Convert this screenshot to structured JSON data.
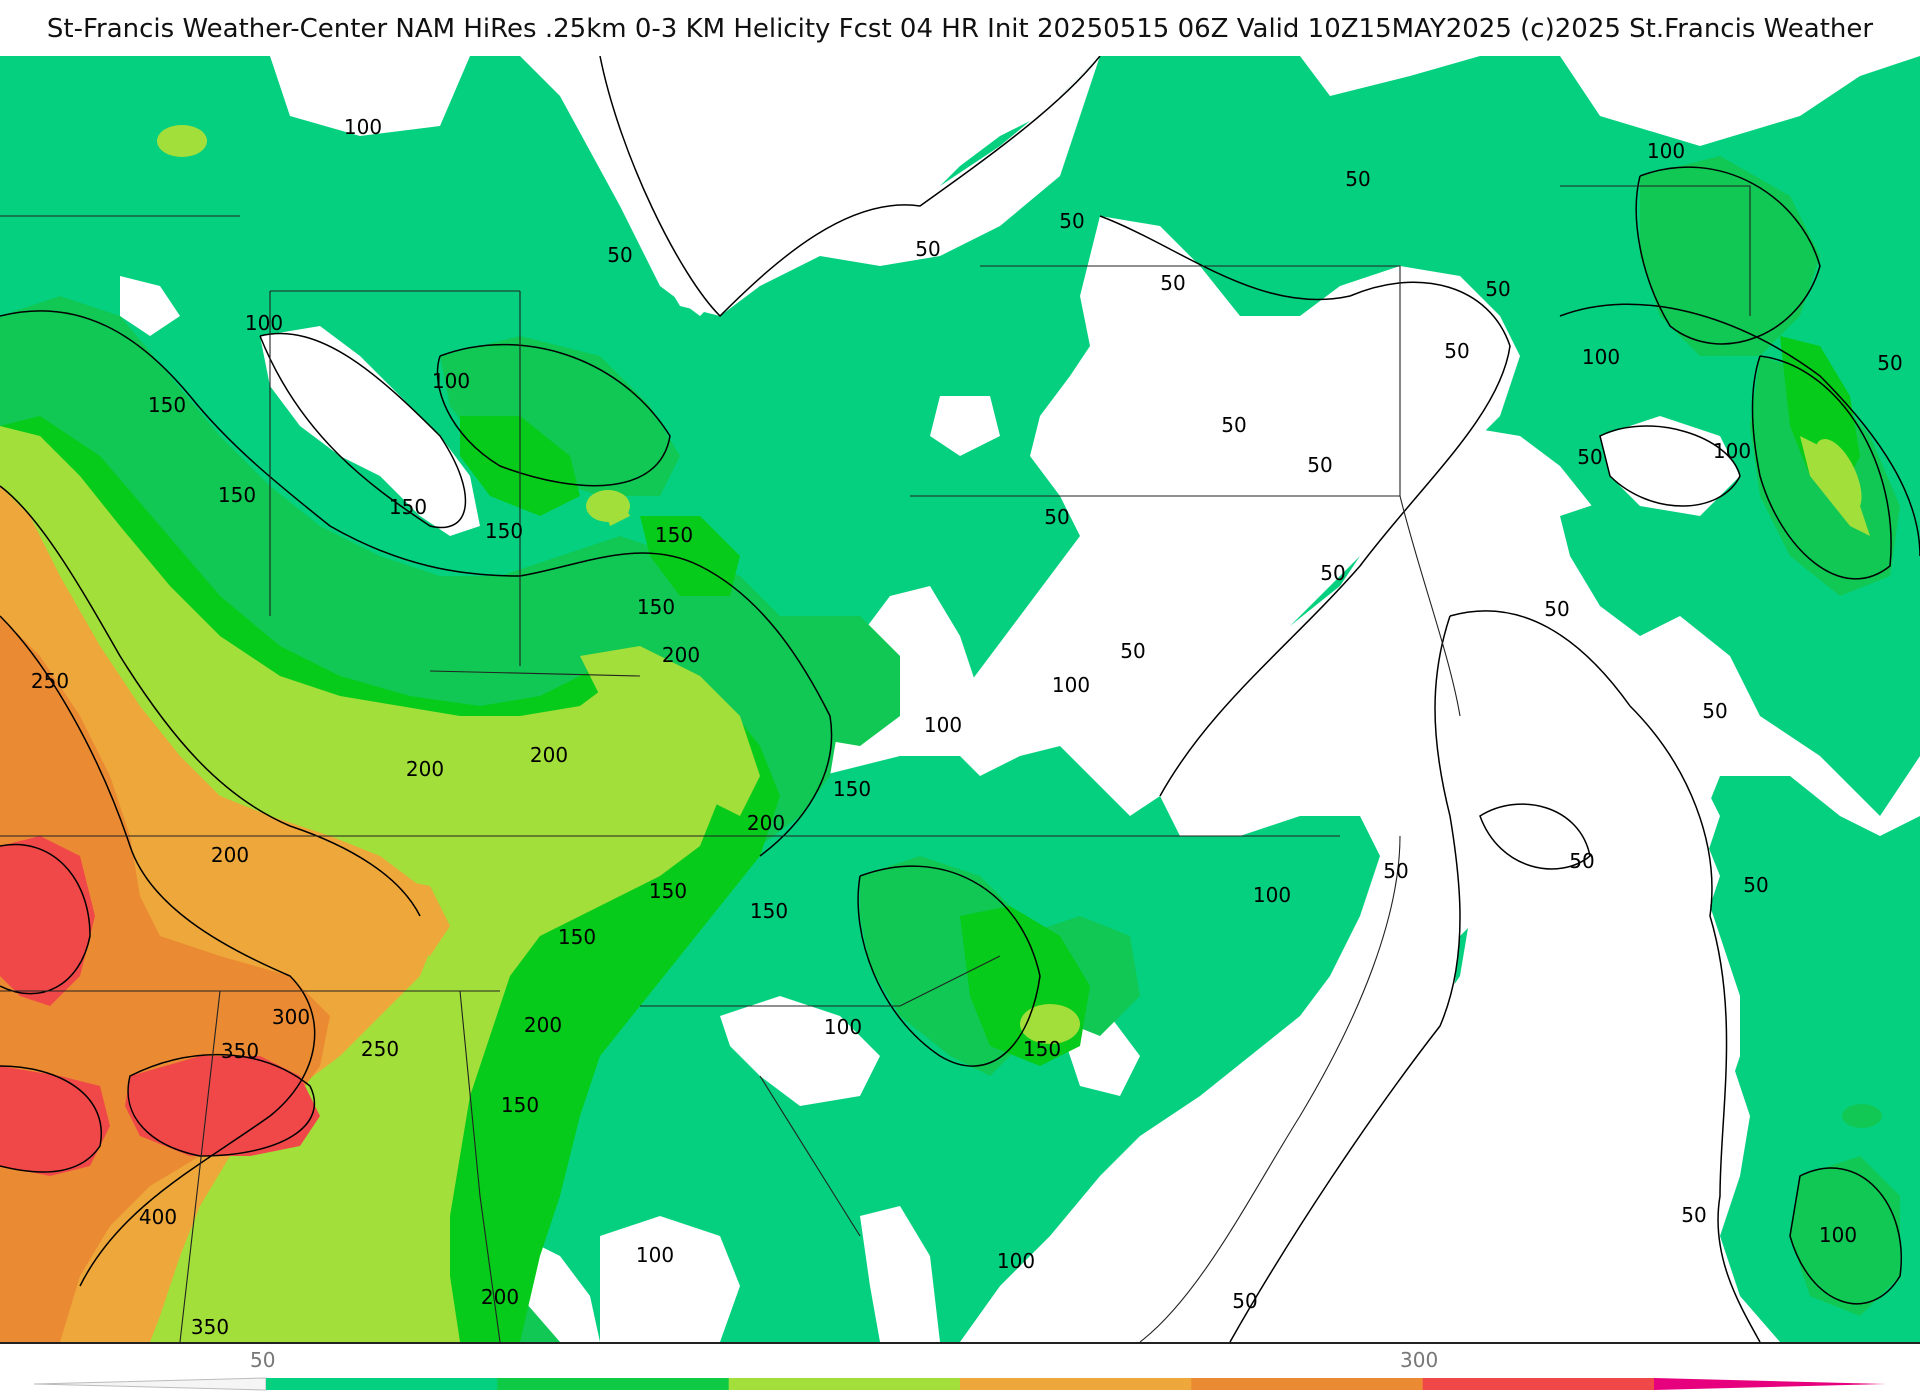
{
  "header": {
    "title": "St-Francis Weather-Center NAM HiRes .25km 0-3 KM Helicity Fcst 04 HR Init 20250515 06Z  Valid 10Z15MAY2025    (c)2025 St.Francis Weather"
  },
  "colors": {
    "c50": "#05d07f",
    "c100": "#10c853",
    "c150": "#06cb1a",
    "c200": "#a2df3a",
    "c250": "#eea73a",
    "c300": "#ea8a33",
    "c350": "#f04848",
    "c400": "#e6007e",
    "background": "#ffffff"
  },
  "colorbar": {
    "labels": [
      {
        "text": "50"
      },
      {
        "text": "300"
      }
    ],
    "segments": [
      "#05d07f",
      "#0fca45",
      "#a2df3a",
      "#eea73a",
      "#ea8a33",
      "#f04848",
      "#e6007e"
    ]
  },
  "contour_labels": [
    {
      "text": "100"
    },
    {
      "text": "50"
    },
    {
      "text": "100"
    },
    {
      "text": "100"
    },
    {
      "text": "150"
    },
    {
      "text": "150"
    },
    {
      "text": "150"
    },
    {
      "text": "150"
    },
    {
      "text": "150"
    },
    {
      "text": "150"
    },
    {
      "text": "200"
    },
    {
      "text": "200"
    },
    {
      "text": "200"
    },
    {
      "text": "250"
    },
    {
      "text": "200"
    },
    {
      "text": "150"
    },
    {
      "text": "200"
    },
    {
      "text": "150"
    },
    {
      "text": "150"
    },
    {
      "text": "150"
    },
    {
      "text": "100"
    },
    {
      "text": "150"
    },
    {
      "text": "200"
    },
    {
      "text": "150"
    },
    {
      "text": "250"
    },
    {
      "text": "300"
    },
    {
      "text": "350"
    },
    {
      "text": "400"
    },
    {
      "text": "350"
    },
    {
      "text": "200"
    },
    {
      "text": "100"
    },
    {
      "text": "100"
    },
    {
      "text": "100"
    },
    {
      "text": "50"
    },
    {
      "text": "50"
    },
    {
      "text": "50"
    },
    {
      "text": "50"
    },
    {
      "text": "50"
    },
    {
      "text": "50"
    },
    {
      "text": "50"
    },
    {
      "text": "50"
    },
    {
      "text": "50"
    },
    {
      "text": "50"
    },
    {
      "text": "50"
    },
    {
      "text": "100"
    },
    {
      "text": "100"
    },
    {
      "text": "100"
    },
    {
      "text": "100"
    },
    {
      "text": "50"
    },
    {
      "text": "50"
    },
    {
      "text": "50"
    },
    {
      "text": "50"
    },
    {
      "text": "50"
    },
    {
      "text": "50"
    },
    {
      "text": "50"
    },
    {
      "text": "100"
    },
    {
      "text": "100"
    },
    {
      "text": "50"
    },
    {
      "text": "50"
    }
  ]
}
